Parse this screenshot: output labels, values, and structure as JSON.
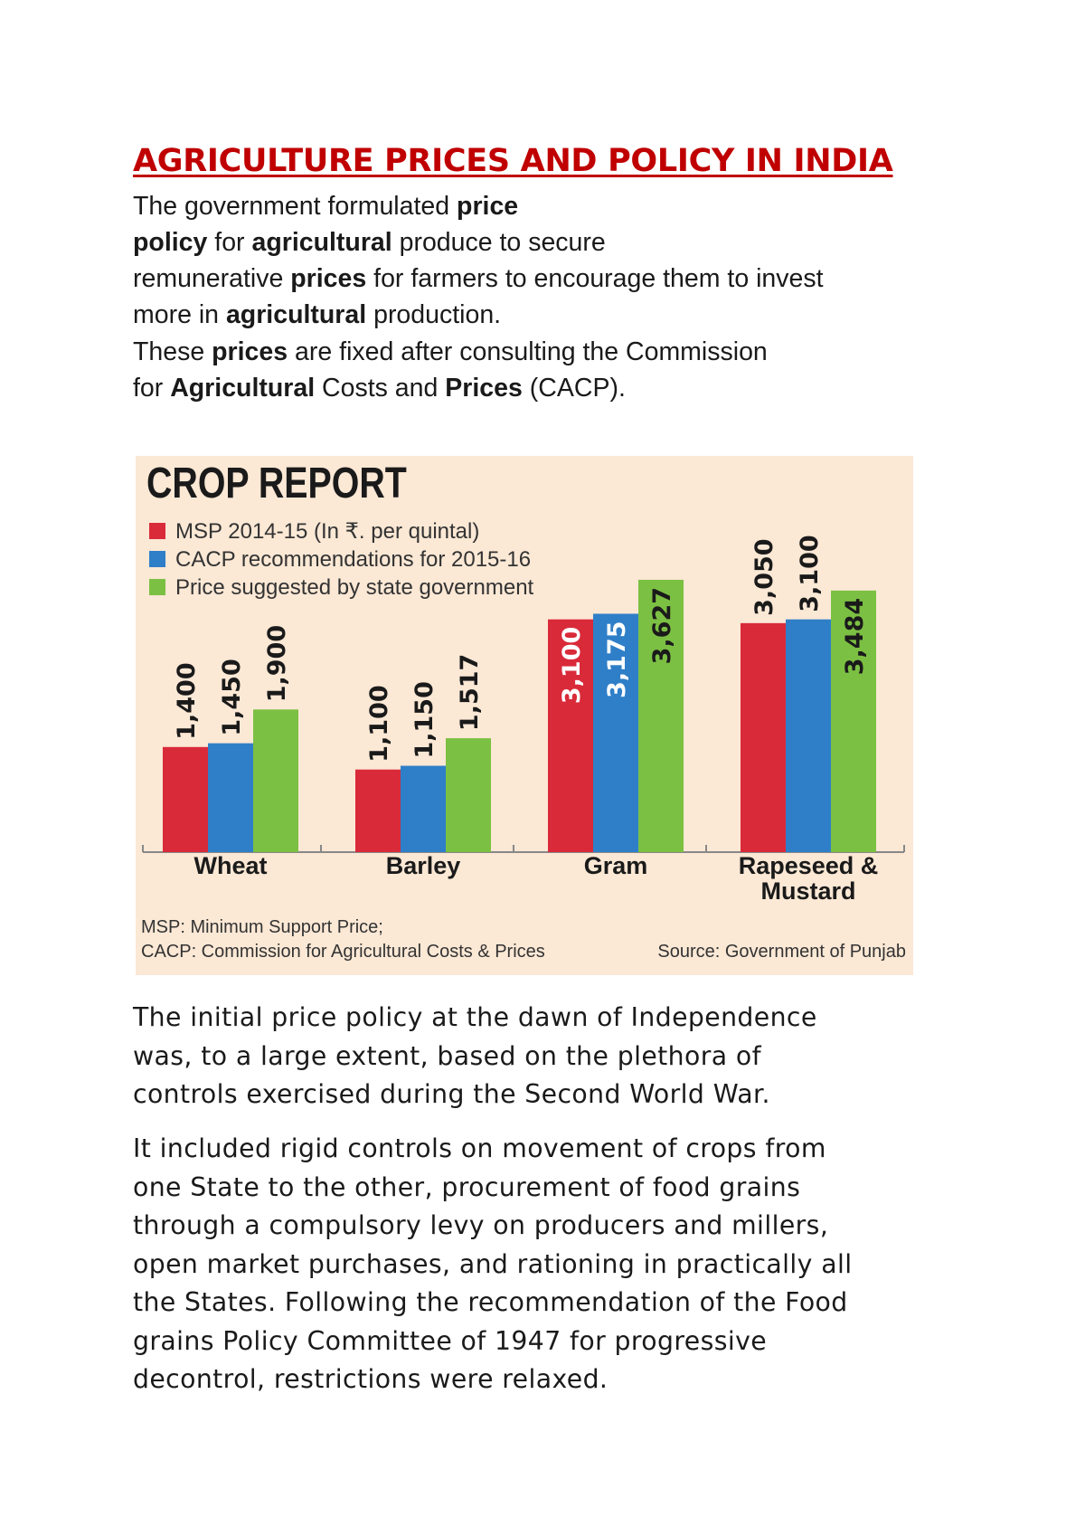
{
  "title": "AGRICULTURE PRICES AND POLICY IN INDIA",
  "paragraphs": [
    [
      {
        "t": "The government formulated "
      },
      {
        "t": "price",
        "b": true
      },
      {
        "t": "\n"
      },
      {
        "t": "policy",
        "b": true
      },
      {
        "t": " for "
      },
      {
        "t": "agricultural",
        "b": true
      },
      {
        "t": " produce to secure\nremunerative "
      },
      {
        "t": "prices",
        "b": true
      },
      {
        "t": " for farmers to encourage them to invest\nmore in "
      },
      {
        "t": "agricultural",
        "b": true
      },
      {
        "t": " production."
      }
    ],
    [
      {
        "t": "These "
      },
      {
        "t": "prices",
        "b": true
      },
      {
        "t": " are fixed after consulting the Commission\nfor "
      },
      {
        "t": "Agricultural",
        "b": true
      },
      {
        "t": " Costs and "
      },
      {
        "t": "Prices",
        "b": true
      },
      {
        "t": " (CACP)."
      }
    ]
  ],
  "paragraphs2": [
    "The initial price policy at the dawn of Independence\nwas, to a large extent, based on the plethora of\ncontrols exercised during the Second World War.",
    "It included rigid controls on movement of crops from\none State to the other, procurement of food grains\nthrough a compulsory levy on producers and millers,\nopen market purchases, and rationing in practically all\nthe States. Following the recommendation of the Food\ngrains Policy Committee of 1947 for progressive\ndecontrol, restrictions were relaxed."
  ],
  "chart_data": {
    "type": "bar",
    "title": "CROP REPORT",
    "categories": [
      "Wheat",
      "Barley",
      "Gram",
      "Rapeseed &\nMustard"
    ],
    "series": [
      {
        "name": "MSP 2014-15 (In ₹. per quintal)",
        "color": "#d92a3a",
        "values": [
          1400,
          1100,
          3100,
          3050
        ],
        "labels": [
          "1,400",
          "1,100",
          "3,100",
          "3,050"
        ]
      },
      {
        "name": "CACP recommendations for 2015-16",
        "color": "#2f7fc8",
        "values": [
          1450,
          1150,
          3175,
          3100
        ],
        "labels": [
          "1,450",
          "1,150",
          "3,175",
          "3,100"
        ]
      },
      {
        "name": "Price suggested by state government",
        "color": "#7cc043",
        "values": [
          1900,
          1517,
          3627,
          3484
        ],
        "labels": [
          "1,900",
          "1,517",
          "3,627",
          "3,484"
        ]
      }
    ],
    "notes": [
      "MSP: Minimum Support Price;",
      "CACP: Commission for Agricultural Costs & Prices"
    ],
    "source": "Source: Government of Punjab",
    "background": "#fbe8d5",
    "legend": "top-left",
    "grid": false
  }
}
